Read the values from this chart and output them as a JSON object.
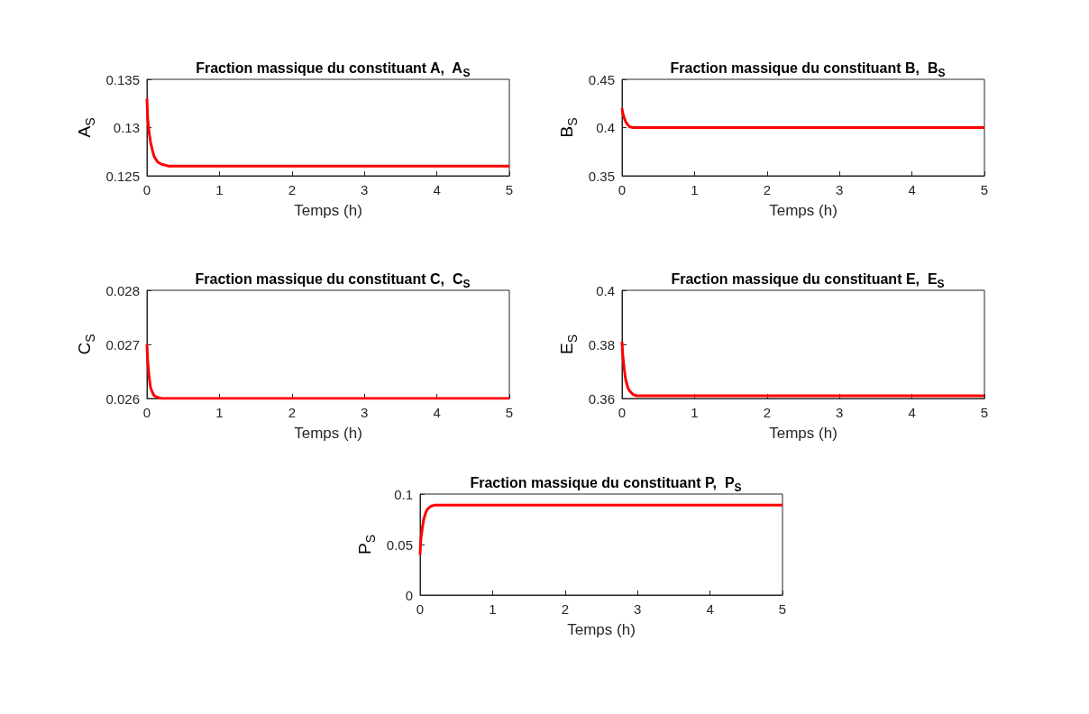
{
  "chart_data": [
    {
      "type": "line",
      "title": "Fraction massique du constituant A,  A$_{S}$",
      "xlabel": "Temps (h)",
      "ylabel": "A$_{S}$",
      "x": [
        0,
        0.01,
        0.03,
        0.05,
        0.08,
        0.1,
        0.15,
        0.2,
        0.3,
        1,
        2,
        3,
        4,
        5
      ],
      "values": [
        0.133,
        0.131,
        0.1295,
        0.1285,
        0.1275,
        0.127,
        0.1264,
        0.1262,
        0.126,
        0.126,
        0.126,
        0.126,
        0.126,
        0.126
      ],
      "color": "#ff0000",
      "xlim": [
        0,
        5
      ],
      "ylim": [
        0.125,
        0.135
      ],
      "xticks": [
        0,
        1,
        2,
        3,
        4,
        5
      ],
      "yticks": [
        0.125,
        0.13,
        0.135
      ],
      "grid": false
    },
    {
      "type": "line",
      "title": "Fraction massique du constituant B,  B$_{S}$",
      "xlabel": "Temps (h)",
      "ylabel": "B$_{S}$",
      "x": [
        0,
        0.01,
        0.03,
        0.05,
        0.08,
        0.1,
        0.15,
        0.2,
        1,
        2,
        3,
        4,
        5
      ],
      "values": [
        0.42,
        0.415,
        0.41,
        0.406,
        0.403,
        0.401,
        0.4,
        0.4,
        0.4,
        0.4,
        0.4,
        0.4,
        0.4
      ],
      "color": "#ff0000",
      "xlim": [
        0,
        5
      ],
      "ylim": [
        0.35,
        0.45
      ],
      "xticks": [
        0,
        1,
        2,
        3,
        4,
        5
      ],
      "yticks": [
        0.35,
        0.4,
        0.45
      ],
      "grid": false
    },
    {
      "type": "line",
      "title": "Fraction massique du constituant C,  C$_{S}$",
      "xlabel": "Temps (h)",
      "ylabel": "C$_{S}$",
      "x": [
        0,
        0.01,
        0.03,
        0.05,
        0.08,
        0.1,
        0.15,
        0.2,
        0.3,
        1,
        2,
        3,
        4,
        5
      ],
      "values": [
        0.027,
        0.0267,
        0.0264,
        0.0262,
        0.0261,
        0.02605,
        0.02602,
        0.026,
        0.026,
        0.026,
        0.026,
        0.026,
        0.026,
        0.026
      ],
      "color": "#ff0000",
      "xlim": [
        0,
        5
      ],
      "ylim": [
        0.026,
        0.028
      ],
      "xticks": [
        0,
        1,
        2,
        3,
        4,
        5
      ],
      "yticks": [
        0.026,
        0.027,
        0.028
      ],
      "grid": false
    },
    {
      "type": "line",
      "title": "Fraction massique du constituant E,  E$_{S}$",
      "xlabel": "Temps (h)",
      "ylabel": "E$_{S}$",
      "x": [
        0,
        0.01,
        0.03,
        0.05,
        0.08,
        0.1,
        0.15,
        0.2,
        0.3,
        1,
        2,
        3,
        4,
        5
      ],
      "values": [
        0.381,
        0.376,
        0.371,
        0.367,
        0.364,
        0.363,
        0.3615,
        0.361,
        0.361,
        0.361,
        0.361,
        0.361,
        0.361,
        0.361
      ],
      "color": "#ff0000",
      "xlim": [
        0,
        5
      ],
      "ylim": [
        0.36,
        0.4
      ],
      "xticks": [
        0,
        1,
        2,
        3,
        4,
        5
      ],
      "yticks": [
        0.36,
        0.38,
        0.4
      ],
      "grid": false
    },
    {
      "type": "line",
      "title": "Fraction massique du constituant P,  P$_{S}$",
      "xlabel": "Temps (h)",
      "ylabel": "P$_{S}$",
      "x": [
        0,
        0.01,
        0.03,
        0.05,
        0.08,
        0.1,
        0.15,
        0.2,
        1,
        2,
        3,
        4,
        5
      ],
      "values": [
        0.04,
        0.055,
        0.066,
        0.075,
        0.082,
        0.085,
        0.088,
        0.089,
        0.089,
        0.089,
        0.089,
        0.089,
        0.089
      ],
      "color": "#ff0000",
      "xlim": [
        0,
        5
      ],
      "ylim": [
        0,
        0.1
      ],
      "xticks": [
        0,
        1,
        2,
        3,
        4,
        5
      ],
      "yticks": [
        0,
        0.05,
        0.1
      ],
      "grid": false
    }
  ]
}
